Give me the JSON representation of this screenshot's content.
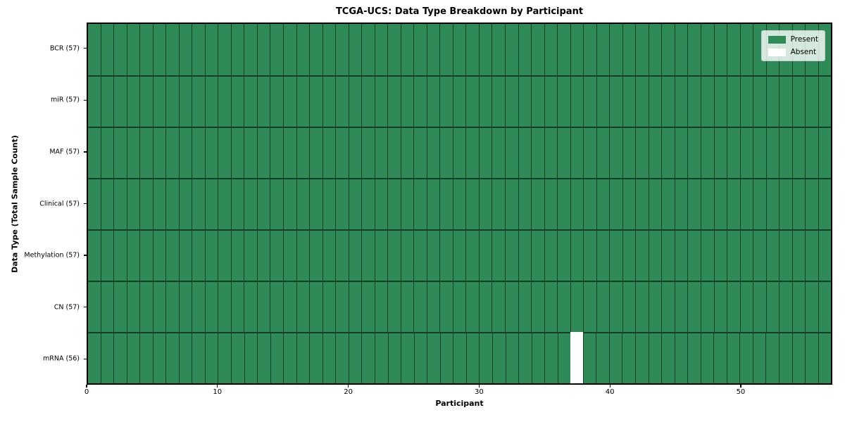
{
  "chart_data": {
    "type": "heatmap",
    "title": "TCGA-UCS: Data Type Breakdown by Participant",
    "xlabel": "Participant",
    "ylabel": "Data Type (Total Sample Count)",
    "x_ticks": [
      0,
      10,
      20,
      30,
      40,
      50
    ],
    "x_range": [
      0,
      57
    ],
    "n_participants": 57,
    "categories": [
      "BCR (57)",
      "miR (57)",
      "MAF (57)",
      "Clinical (57)",
      "Methylation (57)",
      "CN (57)",
      "mRNA (56)"
    ],
    "rows": [
      {
        "label": "BCR (57)",
        "data_type": "BCR",
        "sample_count": 57,
        "absent_participants": []
      },
      {
        "label": "miR (57)",
        "data_type": "miR",
        "sample_count": 57,
        "absent_participants": []
      },
      {
        "label": "MAF (57)",
        "data_type": "MAF",
        "sample_count": 57,
        "absent_participants": []
      },
      {
        "label": "Clinical (57)",
        "data_type": "Clinical",
        "sample_count": 57,
        "absent_participants": []
      },
      {
        "label": "Methylation (57)",
        "data_type": "Methylation",
        "sample_count": 57,
        "absent_participants": []
      },
      {
        "label": "CN (57)",
        "data_type": "CN",
        "sample_count": 57,
        "absent_participants": []
      },
      {
        "label": "mRNA (56)",
        "data_type": "mRNA",
        "sample_count": 56,
        "absent_participants": [
          37
        ]
      }
    ],
    "absent_cells": [
      {
        "row": "mRNA (56)",
        "participant_index": 37
      }
    ],
    "legend": {
      "position": "upper-right",
      "entries": [
        {
          "label": "Present",
          "color": "#2e8b57"
        },
        {
          "label": "Absent",
          "color": "#ffffff"
        }
      ]
    },
    "colors": {
      "present": "#2e8b57",
      "absent": "#ffffff",
      "plot_border": "#000000"
    }
  }
}
